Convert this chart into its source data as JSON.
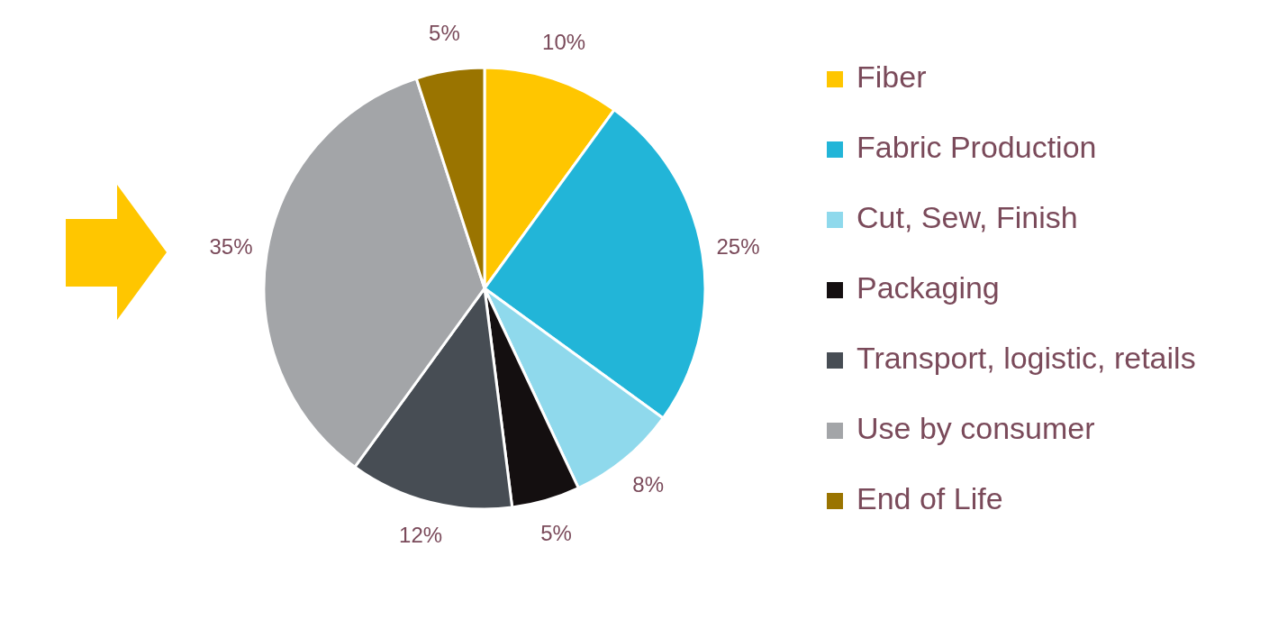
{
  "chart_data": {
    "type": "pie",
    "categories": [
      "Fiber",
      "Fabric Production",
      "Cut, Sew, Finish",
      "Packaging",
      "Transport, logistic, retails",
      "Use by consumer",
      "End of Life"
    ],
    "values": [
      10,
      25,
      8,
      5,
      12,
      35,
      5
    ],
    "colors": [
      "#ffc600",
      "#22b5d8",
      "#8fd9ec",
      "#140f10",
      "#474d54",
      "#a3a5a8",
      "#9a7400"
    ],
    "value_labels": [
      "10%",
      "25%",
      "8%",
      "5%",
      "12%",
      "35%",
      "5%"
    ],
    "legend": "right"
  }
}
